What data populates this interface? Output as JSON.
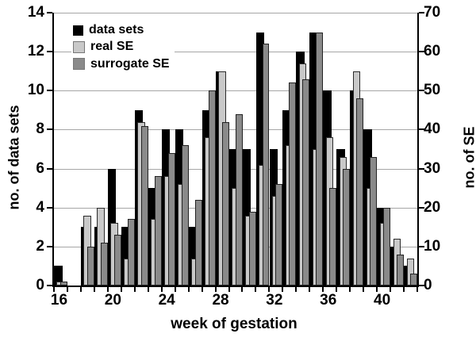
{
  "chart_data": {
    "type": "bar",
    "title": "",
    "xlabel": "week of gestation",
    "ylabel_left": "no. of data sets",
    "ylabel_right": "no. of SE",
    "ylim_left": [
      0,
      14
    ],
    "ylim_right": [
      0,
      70
    ],
    "y_ticks_left": [
      0,
      2,
      4,
      6,
      8,
      10,
      12,
      14
    ],
    "y_ticks_right": [
      0,
      10,
      20,
      30,
      40,
      50,
      60,
      70
    ],
    "x_tick_labels": [
      16,
      20,
      24,
      28,
      32,
      36,
      40
    ],
    "grid": true,
    "legend_position": "top-left",
    "weeks": [
      16,
      17,
      18,
      19,
      20,
      21,
      22,
      23,
      24,
      25,
      26,
      27,
      28,
      29,
      30,
      31,
      32,
      33,
      34,
      35,
      36,
      37,
      38,
      39,
      40,
      41,
      42
    ],
    "series": [
      {
        "name": "data sets",
        "axis": "left",
        "color": "#000000",
        "values": [
          1,
          0,
          3,
          3,
          6,
          3,
          9,
          5,
          8,
          8,
          3,
          9,
          11,
          7,
          7,
          13,
          7,
          9,
          12,
          13,
          10,
          7,
          10,
          8,
          4,
          2,
          1
        ]
      },
      {
        "name": "real SE",
        "axis": "right",
        "color": "#c9c9c9",
        "values": [
          1,
          0,
          18,
          20,
          16,
          7,
          42,
          17,
          28,
          26,
          7,
          38,
          55,
          25,
          18,
          31,
          23,
          36,
          57,
          35,
          38,
          33,
          55,
          25,
          16,
          12,
          7
        ]
      },
      {
        "name": "surrogate SE",
        "axis": "right",
        "color": "#8a8a8a",
        "values": [
          1,
          0,
          10,
          11,
          13,
          17,
          41,
          28,
          34,
          36,
          22,
          50,
          42,
          44,
          19,
          62,
          26,
          52,
          53,
          65,
          25,
          30,
          48,
          33,
          20,
          8,
          3
        ]
      }
    ],
    "colors": {
      "gridline": "#a6a6a6",
      "axis": "#000000",
      "background": "#ffffff"
    }
  },
  "legend": {
    "items": [
      {
        "label": "data sets",
        "color": "#000000"
      },
      {
        "label": "real SE",
        "color": "#c9c9c9"
      },
      {
        "label": "surrogate SE",
        "color": "#8a8a8a"
      }
    ]
  }
}
